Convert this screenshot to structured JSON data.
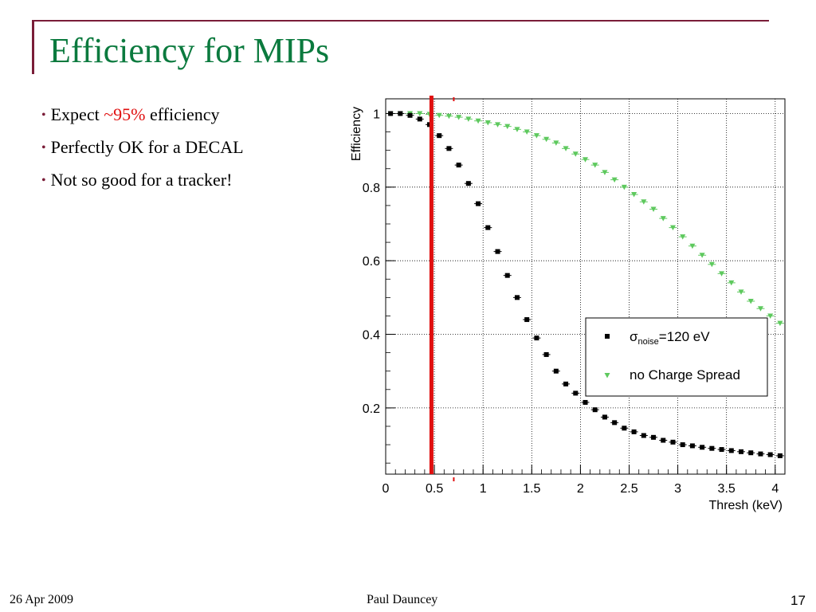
{
  "slide": {
    "title": "Efficiency for MIPs",
    "bullets": [
      {
        "before": "Expect ",
        "highlight": "~95%",
        "after": " efficiency"
      },
      {
        "before": "Perfectly OK for a DECAL",
        "highlight": "",
        "after": ""
      },
      {
        "before": "Not so good for a tracker!",
        "highlight": "",
        "after": ""
      }
    ],
    "highlight_color": "#e01010"
  },
  "footer": {
    "date": "26 Apr 2009",
    "author": "Paul Dauncey",
    "page": "17"
  },
  "chart_data": {
    "type": "scatter",
    "xlabel": "Thresh (keV)",
    "ylabel": "Efficiency",
    "xlim": [
      0,
      4.1
    ],
    "ylim": [
      0.02,
      1.04
    ],
    "xticks": [
      "0",
      "0.5",
      "1",
      "1.5",
      "2",
      "2.5",
      "3",
      "3.5",
      "4"
    ],
    "yticks": [
      "0.2",
      "0.4",
      "0.6",
      "0.8",
      "1"
    ],
    "grid": true,
    "legend_position": "right-middle",
    "threshold_line": {
      "x": 0.47,
      "color": "#e01010"
    },
    "series": [
      {
        "name_symbol": "σ",
        "name_sub": "noise",
        "name_rest": "=120 eV",
        "marker": "square",
        "color": "#000000",
        "x": [
          0.05,
          0.15,
          0.25,
          0.35,
          0.45,
          0.55,
          0.65,
          0.75,
          0.85,
          0.95,
          1.05,
          1.15,
          1.25,
          1.35,
          1.45,
          1.55,
          1.65,
          1.75,
          1.85,
          1.95,
          2.05,
          2.15,
          2.25,
          2.35,
          2.45,
          2.55,
          2.65,
          2.75,
          2.85,
          2.95,
          3.05,
          3.15,
          3.25,
          3.35,
          3.45,
          3.55,
          3.65,
          3.75,
          3.85,
          3.95,
          4.05
        ],
        "y": [
          1.0,
          1.0,
          0.995,
          0.985,
          0.97,
          0.94,
          0.905,
          0.86,
          0.81,
          0.755,
          0.69,
          0.625,
          0.56,
          0.5,
          0.44,
          0.39,
          0.345,
          0.3,
          0.265,
          0.24,
          0.215,
          0.195,
          0.175,
          0.16,
          0.145,
          0.135,
          0.125,
          0.12,
          0.112,
          0.107,
          0.1,
          0.097,
          0.093,
          0.09,
          0.087,
          0.084,
          0.081,
          0.078,
          0.075,
          0.073,
          0.07
        ]
      },
      {
        "name": "no Charge Spread",
        "marker": "triangle-down",
        "color": "#5ec95e",
        "x": [
          0.05,
          0.15,
          0.25,
          0.35,
          0.45,
          0.55,
          0.65,
          0.75,
          0.85,
          0.95,
          1.05,
          1.15,
          1.25,
          1.35,
          1.45,
          1.55,
          1.65,
          1.75,
          1.85,
          1.95,
          2.05,
          2.15,
          2.25,
          2.35,
          2.45,
          2.55,
          2.65,
          2.75,
          2.85,
          2.95,
          3.05,
          3.15,
          3.25,
          3.35,
          3.45,
          3.55,
          3.65,
          3.75,
          3.85,
          3.95,
          4.05
        ],
        "y": [
          1.0,
          1.0,
          1.0,
          1.0,
          0.998,
          0.995,
          0.993,
          0.99,
          0.985,
          0.98,
          0.975,
          0.97,
          0.965,
          0.957,
          0.95,
          0.94,
          0.93,
          0.92,
          0.905,
          0.89,
          0.875,
          0.86,
          0.84,
          0.82,
          0.8,
          0.78,
          0.76,
          0.74,
          0.715,
          0.69,
          0.665,
          0.64,
          0.615,
          0.59,
          0.565,
          0.54,
          0.515,
          0.49,
          0.47,
          0.45,
          0.43
        ]
      }
    ]
  }
}
